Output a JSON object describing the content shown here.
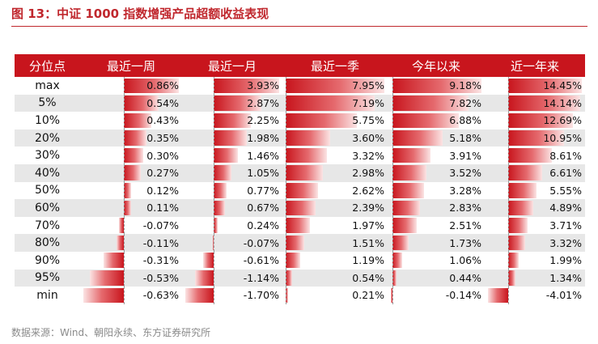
{
  "title": "图 13：中证 1000 指数增强产品超额收益表现",
  "source": "数据来源：Wind、朝阳永续、东方证券研究所",
  "colors": {
    "accent": "#c8151d",
    "title": "#c0272d",
    "stripe": "#e7e7e7"
  },
  "chart_data": {
    "type": "table",
    "columns": [
      "分位点",
      "最近一周",
      "最近一月",
      "最近一季",
      "今年以来",
      "近一年来"
    ],
    "rows": [
      {
        "label": "max",
        "values": [
          "0.86%",
          "3.93%",
          "7.95%",
          "9.18%",
          "14.45%"
        ]
      },
      {
        "label": "5%",
        "values": [
          "0.54%",
          "2.87%",
          "7.19%",
          "7.82%",
          "14.14%"
        ]
      },
      {
        "label": "10%",
        "values": [
          "0.43%",
          "2.25%",
          "5.75%",
          "6.88%",
          "12.69%"
        ]
      },
      {
        "label": "20%",
        "values": [
          "0.35%",
          "1.98%",
          "3.60%",
          "5.18%",
          "10.95%"
        ]
      },
      {
        "label": "30%",
        "values": [
          "0.30%",
          "1.46%",
          "3.32%",
          "3.91%",
          "8.61%"
        ]
      },
      {
        "label": "40%",
        "values": [
          "0.27%",
          "1.05%",
          "2.98%",
          "3.52%",
          "6.61%"
        ]
      },
      {
        "label": "50%",
        "values": [
          "0.12%",
          "0.77%",
          "2.62%",
          "3.28%",
          "5.55%"
        ]
      },
      {
        "label": "60%",
        "values": [
          "0.11%",
          "0.67%",
          "2.39%",
          "2.83%",
          "4.89%"
        ]
      },
      {
        "label": "70%",
        "values": [
          "-0.07%",
          "0.24%",
          "1.97%",
          "2.51%",
          "3.71%"
        ]
      },
      {
        "label": "80%",
        "values": [
          "-0.11%",
          "-0.07%",
          "1.51%",
          "1.73%",
          "3.32%"
        ]
      },
      {
        "label": "90%",
        "values": [
          "-0.31%",
          "-0.61%",
          "1.19%",
          "1.06%",
          "1.99%"
        ]
      },
      {
        "label": "95%",
        "values": [
          "-0.53%",
          "-1.14%",
          "0.54%",
          "0.44%",
          "1.34%"
        ]
      },
      {
        "label": "min",
        "values": [
          "-0.63%",
          "-1.70%",
          "0.21%",
          "-0.14%",
          "-4.01%"
        ]
      }
    ]
  }
}
